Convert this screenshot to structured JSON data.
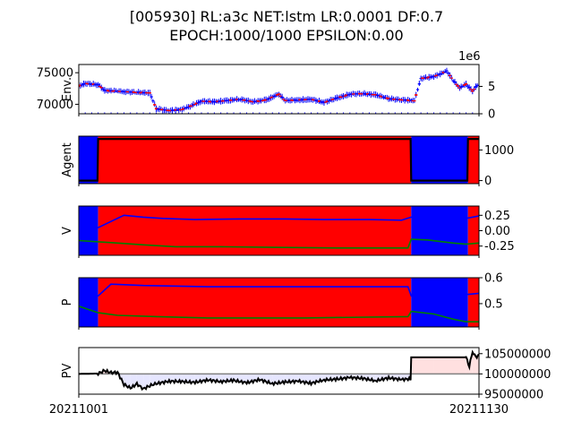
{
  "title_line1": "[005930] RL:a3c NET:lstm LR:0.0001 DF:0.7",
  "title_line2": "EPOCH:1000/1000 EPSILON:0.00",
  "colors": {
    "buy": "#ff0000",
    "sell": "#0000ff",
    "v1": "#0000ff",
    "v2": "#008000",
    "pv_up": "#ffe0e0",
    "pv_down": "#e6e6ff",
    "line": "#000000"
  },
  "chart_data": [
    {
      "type": "candlestick",
      "ylabel": "Env.",
      "yticks": [
        70000,
        75000
      ],
      "ylim": [
        68500,
        76300
      ],
      "y2_ticks": [
        0,
        5
      ],
      "y2_label": "1e6",
      "y2_lim": [
        0,
        9
      ],
      "price_path": [
        [
          0,
          72900
        ],
        [
          1,
          73300
        ],
        [
          3,
          73100
        ],
        [
          4,
          72200
        ],
        [
          7,
          72000
        ],
        [
          9,
          71900
        ],
        [
          11,
          71800
        ],
        [
          12,
          69300
        ],
        [
          14,
          69000
        ],
        [
          16,
          69200
        ],
        [
          17,
          69600
        ],
        [
          19,
          70500
        ],
        [
          21,
          70400
        ],
        [
          23,
          70600
        ],
        [
          25,
          70800
        ],
        [
          27,
          70400
        ],
        [
          29,
          70700
        ],
        [
          31,
          71600
        ],
        [
          32,
          70600
        ],
        [
          34,
          70700
        ],
        [
          36,
          70800
        ],
        [
          38,
          70300
        ],
        [
          40,
          71000
        ],
        [
          42,
          71600
        ],
        [
          44,
          71700
        ],
        [
          46,
          71500
        ],
        [
          48,
          70900
        ],
        [
          50,
          70700
        ],
        [
          52,
          70600
        ],
        [
          53,
          74100
        ],
        [
          55,
          74400
        ],
        [
          56,
          74800
        ],
        [
          57,
          75300
        ],
        [
          58,
          73800
        ],
        [
          59,
          72600
        ],
        [
          60,
          73200
        ],
        [
          61,
          72100
        ],
        [
          62,
          73400
        ]
      ]
    },
    {
      "type": "area",
      "ylabel": "Agent",
      "yticks": [
        0,
        1000
      ],
      "ylim": [
        -100,
        1450
      ],
      "regions": [
        {
          "from": 0,
          "to": 3,
          "action": "sell"
        },
        {
          "from": 3,
          "to": 51.5,
          "action": "buy"
        },
        {
          "from": 51.5,
          "to": 60.3,
          "action": "sell"
        },
        {
          "from": 60.3,
          "to": 62,
          "action": "buy"
        }
      ],
      "holdings": [
        [
          0,
          0
        ],
        [
          2.9,
          0
        ],
        [
          3,
          1360
        ],
        [
          51.4,
          1360
        ],
        [
          51.5,
          0
        ],
        [
          60.2,
          0
        ],
        [
          60.3,
          1360
        ],
        [
          62,
          1360
        ]
      ]
    },
    {
      "type": "line",
      "ylabel": "V",
      "yticks": [
        0.25,
        0.0,
        -0.25
      ],
      "ylim": [
        -0.4,
        0.4
      ],
      "series": [
        {
          "color": "v1",
          "values": [
            [
              0,
              0.05
            ],
            [
              3,
              0.05
            ],
            [
              5,
              0.15
            ],
            [
              7,
              0.25
            ],
            [
              10,
              0.22
            ],
            [
              13,
              0.2
            ],
            [
              18,
              0.18
            ],
            [
              25,
              0.19
            ],
            [
              32,
              0.19
            ],
            [
              38,
              0.18
            ],
            [
              45,
              0.18
            ],
            [
              50,
              0.17
            ],
            [
              51.5,
              0.22
            ],
            [
              60,
              0.2
            ],
            [
              62,
              0.24
            ]
          ]
        },
        {
          "color": "v2",
          "values": [
            [
              0,
              -0.16
            ],
            [
              3,
              -0.18
            ],
            [
              6,
              -0.2
            ],
            [
              10,
              -0.23
            ],
            [
              15,
              -0.26
            ],
            [
              22,
              -0.26
            ],
            [
              30,
              -0.27
            ],
            [
              40,
              -0.28
            ],
            [
              51,
              -0.28
            ],
            [
              51.5,
              -0.14
            ],
            [
              54,
              -0.15
            ],
            [
              58,
              -0.2
            ],
            [
              60,
              -0.22
            ],
            [
              62,
              -0.2
            ]
          ]
        }
      ]
    },
    {
      "type": "line",
      "ylabel": "P",
      "yticks": [
        0.6,
        0.5
      ],
      "ylim": [
        0.41,
        0.6
      ],
      "series": [
        {
          "color": "v1",
          "values": [
            [
              0,
              0.5
            ],
            [
              3,
              0.53
            ],
            [
              5,
              0.575
            ],
            [
              10,
              0.57
            ],
            [
              20,
              0.565
            ],
            [
              30,
              0.565
            ],
            [
              40,
              0.565
            ],
            [
              51,
              0.565
            ],
            [
              51.5,
              0.53
            ],
            [
              58,
              0.52
            ],
            [
              60,
              0.535
            ],
            [
              62,
              0.54
            ]
          ]
        },
        {
          "color": "v2",
          "values": [
            [
              0,
              0.49
            ],
            [
              3,
              0.465
            ],
            [
              6,
              0.455
            ],
            [
              12,
              0.45
            ],
            [
              20,
              0.445
            ],
            [
              35,
              0.445
            ],
            [
              51,
              0.45
            ],
            [
              51.5,
              0.47
            ],
            [
              55,
              0.46
            ],
            [
              58,
              0.44
            ],
            [
              60,
              0.43
            ],
            [
              62,
              0.43
            ]
          ]
        }
      ]
    },
    {
      "type": "line",
      "ylabel": "PV",
      "yticks": [
        105000000,
        100000000,
        95000000
      ],
      "ylim": [
        95000000,
        106500000
      ],
      "baseline": 100000000,
      "x_start_label": "20211001",
      "x_end_label": "20211130",
      "values": [
        [
          0,
          100000000
        ],
        [
          3,
          100100000
        ],
        [
          4,
          100800000
        ],
        [
          5,
          100300000
        ],
        [
          6,
          100400000
        ],
        [
          7,
          97400000
        ],
        [
          8,
          96500000
        ],
        [
          9,
          97500000
        ],
        [
          10,
          96300000
        ],
        [
          11,
          97100000
        ],
        [
          12,
          97600000
        ],
        [
          14,
          98200000
        ],
        [
          16,
          98100000
        ],
        [
          18,
          97900000
        ],
        [
          20,
          98500000
        ],
        [
          22,
          98100000
        ],
        [
          24,
          98400000
        ],
        [
          26,
          97800000
        ],
        [
          28,
          98600000
        ],
        [
          30,
          97600000
        ],
        [
          32,
          98000000
        ],
        [
          34,
          98200000
        ],
        [
          36,
          97700000
        ],
        [
          38,
          98500000
        ],
        [
          40,
          98700000
        ],
        [
          42,
          99100000
        ],
        [
          44,
          98900000
        ],
        [
          46,
          98300000
        ],
        [
          48,
          99000000
        ],
        [
          50,
          98600000
        ],
        [
          51.4,
          98800000
        ],
        [
          51.5,
          104100000
        ],
        [
          55,
          104100000
        ],
        [
          60,
          104100000
        ],
        [
          60.5,
          102000000
        ],
        [
          61,
          105500000
        ],
        [
          61.5,
          104000000
        ],
        [
          62,
          104800000
        ]
      ]
    }
  ]
}
